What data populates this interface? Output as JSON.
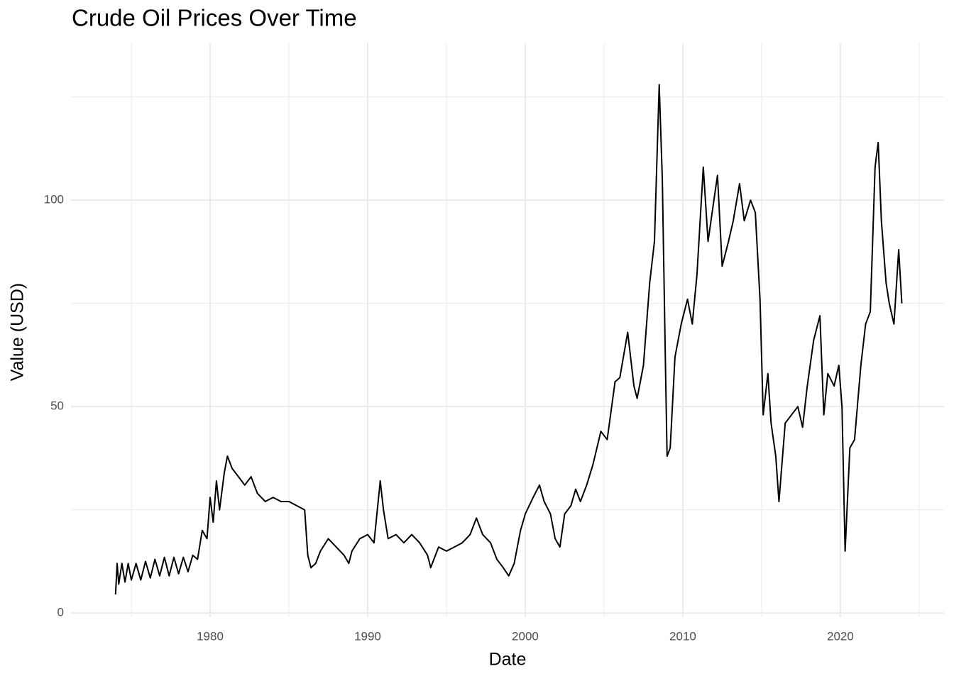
{
  "chart_data": {
    "type": "line",
    "title": "Crude Oil Prices Over Time",
    "x_label": "Date",
    "y_label": "Value (USD)",
    "x": [
      1974.0,
      1974.1,
      1974.2,
      1974.4,
      1974.6,
      1974.8,
      1975.0,
      1975.3,
      1975.6,
      1975.9,
      1976.2,
      1976.5,
      1976.8,
      1977.1,
      1977.4,
      1977.7,
      1978.0,
      1978.3,
      1978.6,
      1978.9,
      1979.2,
      1979.5,
      1979.8,
      1980.0,
      1980.2,
      1980.4,
      1980.6,
      1980.9,
      1981.1,
      1981.4,
      1981.8,
      1982.2,
      1982.6,
      1983.0,
      1983.5,
      1984.0,
      1984.5,
      1985.0,
      1985.5,
      1986.0,
      1986.2,
      1986.4,
      1986.7,
      1987.0,
      1987.5,
      1988.0,
      1988.5,
      1988.8,
      1989.0,
      1989.5,
      1990.0,
      1990.4,
      1990.8,
      1991.0,
      1991.3,
      1991.8,
      1992.3,
      1992.8,
      1993.3,
      1993.8,
      1994.0,
      1994.5,
      1995.0,
      1995.5,
      1996.0,
      1996.5,
      1996.9,
      1997.3,
      1997.8,
      1998.2,
      1998.6,
      1998.95,
      1999.3,
      1999.7,
      2000.0,
      2000.5,
      2000.9,
      2001.2,
      2001.6,
      2001.9,
      2002.2,
      2002.5,
      2002.9,
      2003.2,
      2003.5,
      2003.9,
      2004.3,
      2004.8,
      2005.2,
      2005.7,
      2006.0,
      2006.5,
      2006.9,
      2007.1,
      2007.5,
      2007.9,
      2008.2,
      2008.5,
      2008.7,
      2008.9,
      2009.0,
      2009.2,
      2009.5,
      2009.9,
      2010.3,
      2010.6,
      2010.9,
      2011.3,
      2011.6,
      2011.9,
      2012.2,
      2012.5,
      2012.9,
      2013.2,
      2013.6,
      2013.9,
      2014.3,
      2014.6,
      2014.9,
      2015.1,
      2015.4,
      2015.6,
      2015.9,
      2016.1,
      2016.5,
      2016.9,
      2017.3,
      2017.6,
      2017.9,
      2018.3,
      2018.7,
      2018.95,
      2019.2,
      2019.6,
      2019.9,
      2020.1,
      2020.3,
      2020.6,
      2020.9,
      2021.3,
      2021.6,
      2021.9,
      2022.2,
      2022.4,
      2022.6,
      2022.9,
      2023.1,
      2023.4,
      2023.7,
      2023.9
    ],
    "series": [
      {
        "color": "#000000",
        "values": [
          4.5,
          12,
          7,
          12,
          7.5,
          12,
          8,
          12,
          8,
          12.5,
          8.5,
          13,
          9,
          13.5,
          9,
          13.5,
          9.5,
          13.5,
          10,
          14,
          13,
          20,
          18,
          28,
          22,
          32,
          25,
          34,
          38,
          35,
          33,
          31,
          33,
          29,
          27,
          28,
          27,
          27,
          26,
          25,
          14,
          11,
          12,
          15,
          18,
          16,
          14,
          12,
          15,
          18,
          19,
          17,
          32,
          25,
          18,
          19,
          17,
          19,
          17,
          14,
          11,
          16,
          15,
          16,
          17,
          19,
          23,
          19,
          17,
          13,
          11,
          9,
          12,
          20,
          24,
          28,
          31,
          27,
          24,
          18,
          16,
          24,
          26,
          30,
          27,
          31,
          36,
          44,
          42,
          56,
          57,
          68,
          55,
          52,
          60,
          80,
          90,
          128,
          105,
          60,
          38,
          40,
          62,
          70,
          76,
          70,
          82,
          108,
          90,
          98,
          106,
          84,
          90,
          95,
          104,
          95,
          100,
          97,
          76,
          48,
          58,
          46,
          38,
          27,
          46,
          48,
          50,
          45,
          55,
          66,
          72,
          48,
          58,
          55,
          60,
          50,
          15,
          40,
          42,
          60,
          70,
          73,
          108,
          114,
          95,
          80,
          75,
          70,
          88,
          75
        ]
      }
    ],
    "xlim": [
      1971.17,
      2026.58
    ],
    "ylim": [
      -1,
      138
    ],
    "xticks": [
      1980,
      1990,
      2000,
      2010,
      2020
    ],
    "x_minor_ticks": [
      1975,
      1985,
      1995,
      2005,
      2015,
      2025
    ],
    "yticks": [
      0,
      50,
      100
    ],
    "y_minor_ticks": [
      25,
      75,
      125
    ],
    "grid": true
  }
}
